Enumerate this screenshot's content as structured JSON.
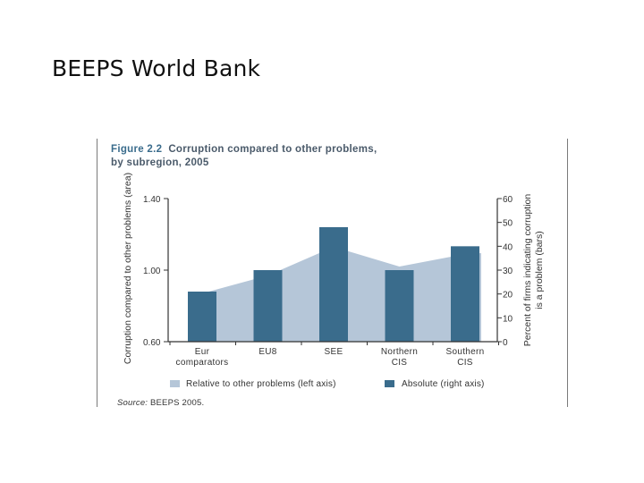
{
  "slide": {
    "title": "BEEPS World Bank"
  },
  "figure": {
    "number": "Figure 2.2",
    "title_line1": "Corruption compared to other problems,",
    "title_line2": "by subregion, 2005",
    "source_label": "Source:",
    "source_text": "BEEPS 2005."
  },
  "colors": {
    "area": "#b5c6d8",
    "bar": "#3a6c8c",
    "axis": "#333333"
  },
  "chart_data": {
    "type": "bar",
    "categories": [
      [
        "Eur",
        "comparators"
      ],
      [
        "EU8"
      ],
      [
        "SEE"
      ],
      [
        "Northern",
        "CIS"
      ],
      [
        "Southern",
        "CIS"
      ]
    ],
    "series": [
      {
        "name": "Relative to other problems (left axis)",
        "type": "area",
        "axis": "left",
        "values": [
          0.87,
          0.97,
          1.13,
          1.02,
          1.09
        ]
      },
      {
        "name": "Absolute (right axis)",
        "type": "bar",
        "axis": "right",
        "values": [
          21,
          30,
          48,
          30,
          40
        ]
      }
    ],
    "left_axis": {
      "label": "Corruption compared to other problems (area)",
      "ylim": [
        0.6,
        1.4
      ],
      "ticks": [
        "0.60",
        "1.00",
        "1.40"
      ]
    },
    "right_axis": {
      "label_line1": "Percent of firms indicating corruption",
      "label_line2": "is a problem (bars)",
      "ylim": [
        0,
        60
      ],
      "ticks": [
        "0",
        "10",
        "20",
        "30",
        "40",
        "50",
        "60"
      ]
    },
    "grid": false,
    "legend_position": "bottom"
  }
}
